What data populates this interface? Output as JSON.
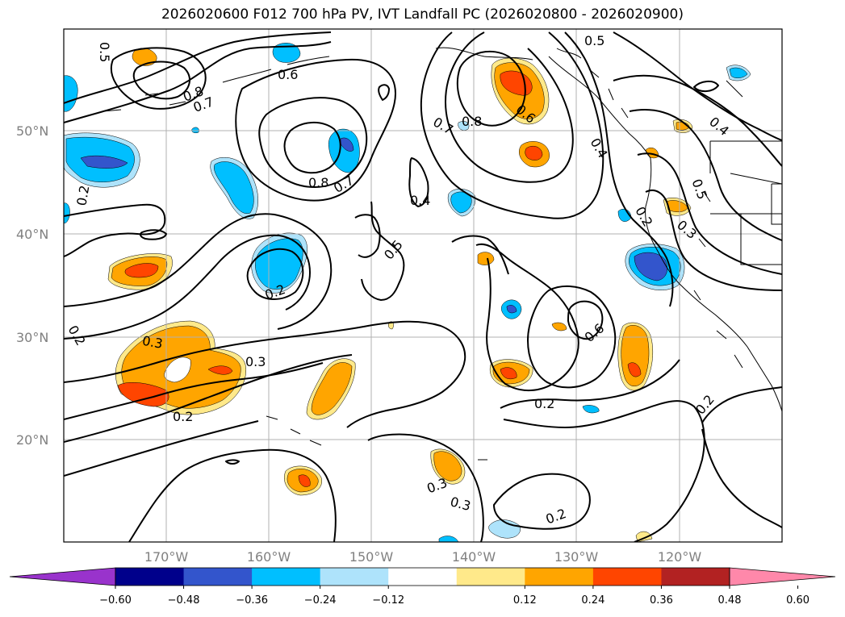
{
  "title": "2026020600 F012 700 hPa PV, IVT Landfall PC (2026020800 - 2026020900)",
  "map": {
    "lat_labels": [
      "50°N",
      "40°N",
      "30°N",
      "20°N"
    ],
    "lon_labels": [
      "170°W",
      "160°W",
      "150°W",
      "140°W",
      "130°W",
      "120°W"
    ],
    "contour_labels": [
      "0.5",
      "0.6",
      "0.8",
      "0.7",
      "0.8",
      "0.7",
      "0.8",
      "0.7",
      "0.6",
      "0.5",
      "0.4",
      "0.4",
      "0.5",
      "0.3",
      "0.2",
      "0.2",
      "0.2",
      "0.3",
      "0.3",
      "0.2",
      "0.5",
      "0.4",
      "0.6",
      "0.2",
      "0.2",
      "0.3",
      "0.3",
      "0.2"
    ]
  },
  "colorbar": {
    "ticks": [
      "−0.60",
      "−0.48",
      "−0.36",
      "−0.24",
      "−0.12",
      "0.12",
      "0.24",
      "0.36",
      "0.48",
      "0.60"
    ],
    "colors": [
      "#9933cc",
      "#00008b",
      "#3355cc",
      "#00bfff",
      "#aee3fb",
      "#ffffff",
      "#ffe98a",
      "#ffa500",
      "#ff4500",
      "#b22222",
      "#ff88aa"
    ]
  }
}
